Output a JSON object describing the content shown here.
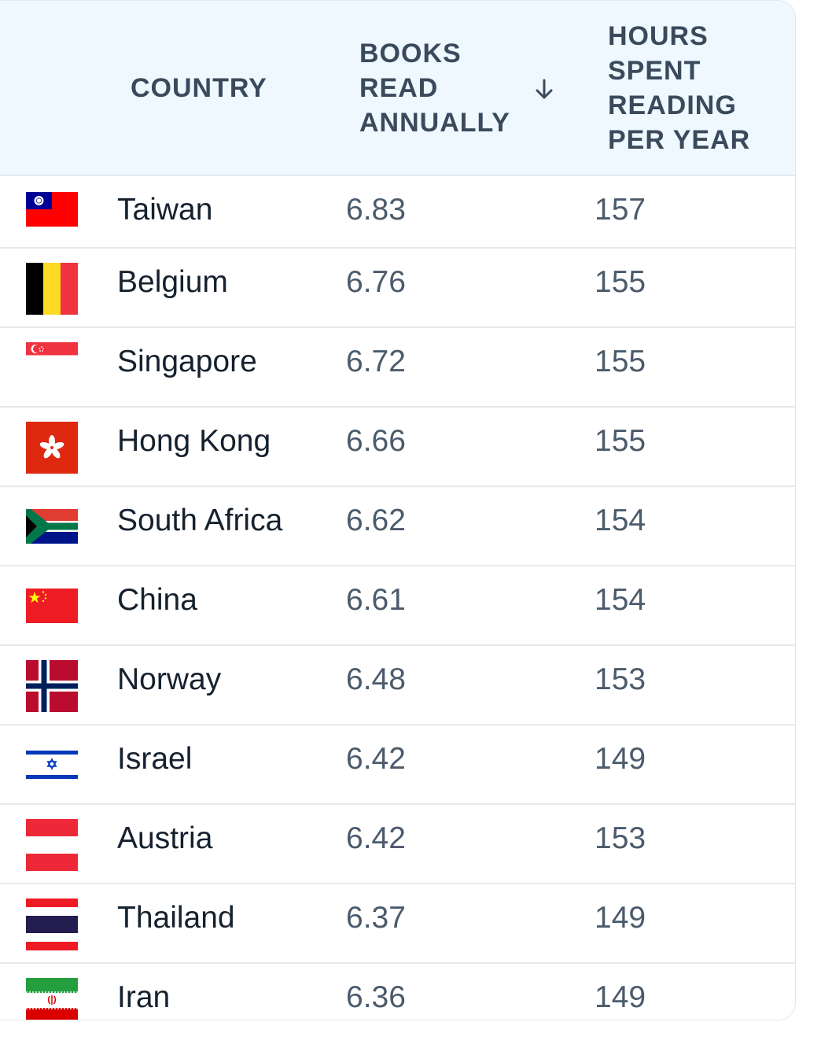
{
  "table": {
    "headers": {
      "country": "COUNTRY",
      "books": "BOOKS READ ANNUALLY",
      "hours": "HOURS SPENT READING PER YEAR"
    },
    "sort": {
      "column": "books",
      "direction": "descending",
      "icon": "arrow-down-icon"
    },
    "colors": {
      "header_bg": "#eef8fe",
      "header_text": "#3a4a5c",
      "country_text": "#15212e",
      "value_text": "#4b5b6c",
      "divider": "#e6e9ed"
    },
    "rows": [
      {
        "country": "Taiwan",
        "books": "6.83",
        "hours": "157",
        "flag": "taiwan-flag-icon"
      },
      {
        "country": "Belgium",
        "books": "6.76",
        "hours": "155",
        "flag": "belgium-flag-icon"
      },
      {
        "country": "Singapore",
        "books": "6.72",
        "hours": "155",
        "flag": "singapore-flag-icon"
      },
      {
        "country": "Hong Kong",
        "books": "6.66",
        "hours": "155",
        "flag": "hong-kong-flag-icon"
      },
      {
        "country": "South Africa",
        "books": "6.62",
        "hours": "154",
        "flag": "south-africa-flag-icon"
      },
      {
        "country": "China",
        "books": "6.61",
        "hours": "154",
        "flag": "china-flag-icon"
      },
      {
        "country": "Norway",
        "books": "6.48",
        "hours": "153",
        "flag": "norway-flag-icon"
      },
      {
        "country": "Israel",
        "books": "6.42",
        "hours": "149",
        "flag": "israel-flag-icon"
      },
      {
        "country": "Austria",
        "books": "6.42",
        "hours": "153",
        "flag": "austria-flag-icon"
      },
      {
        "country": "Thailand",
        "books": "6.37",
        "hours": "149",
        "flag": "thailand-flag-icon"
      },
      {
        "country": "Iran",
        "books": "6.36",
        "hours": "149",
        "flag": "iran-flag-icon"
      }
    ]
  }
}
